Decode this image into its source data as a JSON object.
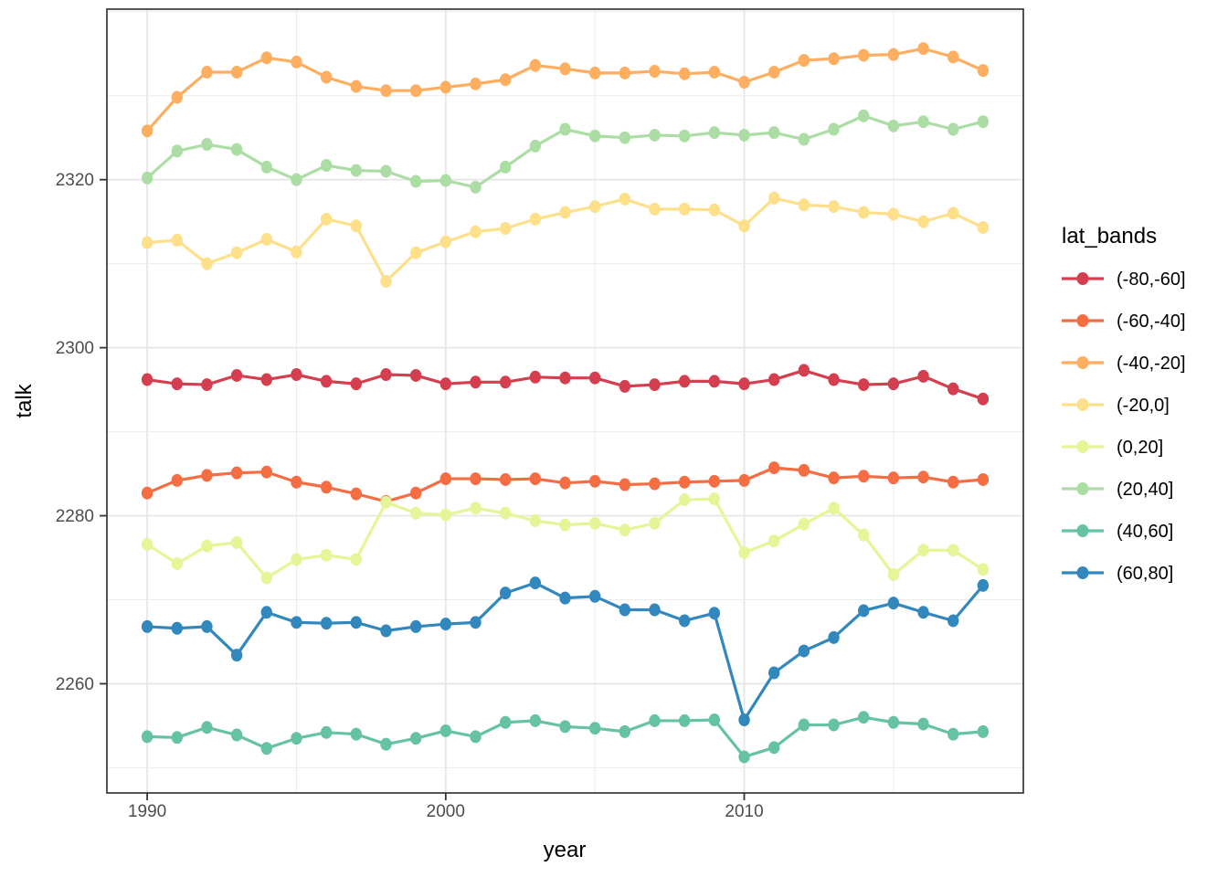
{
  "figure": {
    "x_axis_title": "year",
    "y_axis_title": "talk",
    "legend_title": "lat_bands"
  },
  "chart_data": {
    "type": "line",
    "title": "",
    "xlabel": "year",
    "ylabel": "talk",
    "grid": true,
    "legend_position": "right",
    "xlim": [
      1988.65,
      2019.35
    ],
    "ylim": [
      2247.0,
      2340.3
    ],
    "x_ticks": {
      "major": [
        1990,
        2000,
        2010
      ],
      "minor": [
        1995,
        2005,
        2015
      ]
    },
    "y_ticks": {
      "major": [
        2260,
        2280,
        2300,
        2320
      ],
      "minor": [
        2250,
        2270,
        2290,
        2310,
        2330,
        2340
      ]
    },
    "x": [
      1990,
      1991,
      1992,
      1993,
      1994,
      1995,
      1996,
      1997,
      1998,
      1999,
      2000,
      2001,
      2002,
      2003,
      2004,
      2005,
      2006,
      2007,
      2008,
      2009,
      2010,
      2011,
      2012,
      2013,
      2014,
      2015,
      2016,
      2017,
      2018
    ],
    "series": [
      {
        "name": "(-80,-60]",
        "color": "#d53e4f",
        "values": [
          2296.2,
          2295.7,
          2295.6,
          2296.7,
          2296.2,
          2296.8,
          2296.0,
          2295.7,
          2296.8,
          2296.7,
          2295.7,
          2295.9,
          2295.9,
          2296.5,
          2296.4,
          2296.4,
          2295.4,
          2295.6,
          2296.0,
          2296.0,
          2295.7,
          2296.2,
          2297.3,
          2296.2,
          2295.6,
          2295.7,
          2296.6,
          2295.1,
          2293.9
        ]
      },
      {
        "name": "(-60,-40]",
        "color": "#f46d43",
        "values": [
          2282.7,
          2284.2,
          2284.8,
          2285.1,
          2285.2,
          2284.0,
          2283.4,
          2282.6,
          2281.7,
          2282.7,
          2284.4,
          2284.4,
          2284.3,
          2284.4,
          2283.9,
          2284.1,
          2283.7,
          2283.8,
          2284.0,
          2284.1,
          2284.2,
          2285.7,
          2285.4,
          2284.5,
          2284.7,
          2284.5,
          2284.6,
          2284.0,
          2284.3
        ]
      },
      {
        "name": "(-40,-20]",
        "color": "#fdae61",
        "values": [
          2325.8,
          2329.8,
          2332.8,
          2332.8,
          2334.5,
          2334.0,
          2332.2,
          2331.1,
          2330.6,
          2330.6,
          2331.0,
          2331.4,
          2331.9,
          2333.6,
          2333.2,
          2332.7,
          2332.7,
          2332.9,
          2332.6,
          2332.8,
          2331.6,
          2332.8,
          2334.2,
          2334.4,
          2334.8,
          2334.9,
          2335.6,
          2334.6,
          2333.0
        ]
      },
      {
        "name": "(-20,0]",
        "color": "#fee08b",
        "values": [
          2312.5,
          2312.8,
          2310.0,
          2311.3,
          2312.9,
          2311.4,
          2315.3,
          2314.5,
          2307.9,
          2311.3,
          2312.6,
          2313.8,
          2314.2,
          2315.3,
          2316.1,
          2316.8,
          2317.7,
          2316.5,
          2316.5,
          2316.4,
          2314.5,
          2317.8,
          2317.0,
          2316.8,
          2316.1,
          2315.9,
          2315.0,
          2316.0,
          2314.3
        ]
      },
      {
        "name": "(0,20]",
        "color": "#e6f598",
        "values": [
          2276.6,
          2274.3,
          2276.4,
          2276.8,
          2272.6,
          2274.8,
          2275.3,
          2274.8,
          2281.6,
          2280.3,
          2280.1,
          2280.9,
          2280.3,
          2279.4,
          2278.9,
          2279.1,
          2278.3,
          2279.1,
          2281.9,
          2282.0,
          2275.6,
          2277.0,
          2279.0,
          2280.9,
          2277.7,
          2273.0,
          2275.9,
          2275.9,
          2273.6
        ]
      },
      {
        "name": "(20,40]",
        "color": "#abdda4",
        "values": [
          2320.2,
          2323.4,
          2324.2,
          2323.6,
          2321.5,
          2320.0,
          2321.7,
          2321.1,
          2321.0,
          2319.8,
          2319.9,
          2319.1,
          2321.5,
          2324.0,
          2326.0,
          2325.2,
          2325.0,
          2325.3,
          2325.2,
          2325.6,
          2325.3,
          2325.6,
          2324.8,
          2326.0,
          2327.6,
          2326.4,
          2326.9,
          2326.0,
          2326.9
        ]
      },
      {
        "name": "(40,60]",
        "color": "#66c2a5",
        "values": [
          2253.7,
          2253.6,
          2254.8,
          2253.9,
          2252.3,
          2253.5,
          2254.2,
          2254.0,
          2252.8,
          2253.5,
          2254.4,
          2253.7,
          2255.4,
          2255.6,
          2254.9,
          2254.7,
          2254.3,
          2255.6,
          2255.6,
          2255.7,
          2251.3,
          2252.4,
          2255.1,
          2255.1,
          2256.0,
          2255.4,
          2255.2,
          2254.0,
          2254.3
        ]
      },
      {
        "name": "(60,80]",
        "color": "#3288bd",
        "values": [
          2266.8,
          2266.6,
          2266.8,
          2263.4,
          2268.5,
          2267.3,
          2267.2,
          2267.3,
          2266.3,
          2266.8,
          2267.1,
          2267.3,
          2270.8,
          2272.0,
          2270.2,
          2270.4,
          2268.8,
          2268.8,
          2267.5,
          2268.4,
          2255.7,
          2261.3,
          2263.9,
          2265.5,
          2268.7,
          2269.6,
          2268.5,
          2267.5,
          2271.7
        ]
      }
    ],
    "style": {
      "grid_major_color": "#e6e6e6",
      "grid_minor_color": "#ececec",
      "panel_border_color": "#2b2b2b",
      "tick_color": "#333333",
      "tick_label_color": "#4d4d4d",
      "background_color": "#ffffff"
    }
  }
}
